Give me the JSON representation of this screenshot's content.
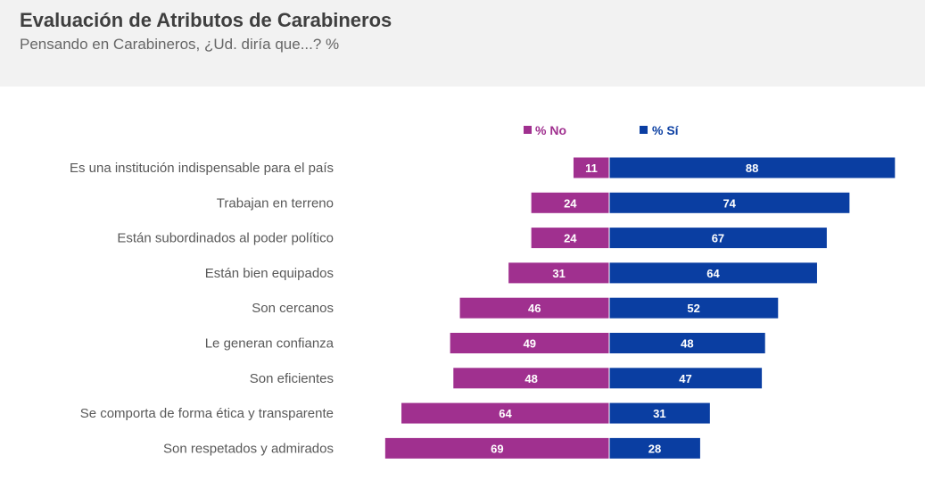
{
  "title": "Evaluación de Atributos de Carabineros",
  "subtitle": "Pensando en Carabineros, ¿Ud. diría que...? %",
  "colors": {
    "no": "#a0308f",
    "si": "#0a3ea2"
  },
  "chart_data": {
    "type": "bar",
    "orientation": "horizontal-diverging",
    "categories": [
      "Es una institución indispensable para el país",
      "Trabajan en terreno",
      "Están subordinados al poder político",
      "Están bien equipados",
      "Son cercanos",
      "Le generan confianza",
      "Son eficientes",
      "Se comporta de forma ética y transparente",
      "Son respetados y admirados"
    ],
    "series": [
      {
        "name": "% No",
        "values": [
          11,
          24,
          24,
          31,
          46,
          49,
          48,
          64,
          69
        ]
      },
      {
        "name": "% Sí",
        "values": [
          88,
          74,
          67,
          64,
          52,
          48,
          47,
          31,
          28
        ]
      }
    ],
    "legend": "top-center"
  }
}
